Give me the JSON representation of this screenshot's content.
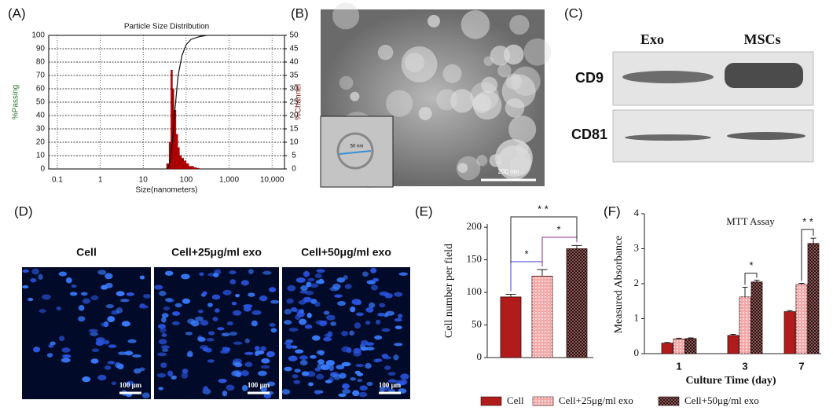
{
  "chart_data": [
    {
      "type": "histline",
      "panel": "(A)",
      "title": "Particle Size Distribution",
      "xlabel": "Size(nanometers)",
      "ylabel": "%Passing",
      "y2label": "%Channel",
      "xscale": "log",
      "xlim": [
        0.063,
        19500
      ],
      "xticks": [
        0.1,
        1,
        10,
        100,
        {
          "value": 1000,
          "label": "1,000"
        },
        {
          "value": 10000,
          "label": "10,000"
        }
      ],
      "ylim": [
        0,
        100
      ],
      "yticks": [
        0,
        10,
        20,
        30,
        40,
        50,
        60,
        70,
        80,
        90,
        100
      ],
      "y2lim": [
        0,
        50
      ],
      "y2ticks": [
        0,
        5,
        10,
        15,
        20,
        25,
        30,
        35,
        40,
        45,
        50
      ],
      "grid": true,
      "bins": [
        35,
        40,
        44,
        48,
        52,
        58,
        64,
        70,
        78,
        88,
        100,
        115,
        130,
        150,
        175,
        200
      ],
      "counts": [
        2,
        10,
        37,
        30,
        22,
        13,
        8,
        5,
        4,
        3,
        2,
        1,
        1,
        0.5,
        0.3
      ],
      "bar_color": "#c00000",
      "line": {
        "color": "#111111",
        "x": [
          35,
          40,
          48,
          55,
          65,
          80,
          100,
          130,
          200,
          300
        ],
        "y": [
          0,
          2,
          20,
          45,
          70,
          85,
          93,
          97,
          99,
          100
        ]
      }
    },
    {
      "type": "bar",
      "panel": "(E)",
      "ylabel": "Cell number per field",
      "categories": [
        null,
        null,
        null
      ],
      "values": [
        93,
        125,
        167
      ],
      "errors": [
        4,
        10,
        5
      ],
      "colors": [
        "#b01c1c",
        "#f4a8a8",
        "#8a5a5a"
      ],
      "hatch": [
        "none",
        "dots",
        "checker"
      ],
      "ylim": [
        0,
        205
      ],
      "yticks": [
        0,
        50,
        100,
        150,
        200
      ],
      "annotations": [
        "*",
        "*",
        "* *"
      ]
    },
    {
      "type": "groupedbar",
      "panel": "(F)",
      "title": "MTT Assay",
      "xlabel": "Culture Time (day)",
      "ylabel": "Measured Absorbance",
      "categories": [
        "1",
        "3",
        "7"
      ],
      "ylim": [
        0,
        4
      ],
      "yticks": [
        0,
        1,
        2,
        3,
        4
      ],
      "series": [
        {
          "name": "Cell",
          "color": "#b01c1c",
          "hatch": "none",
          "values": [
            0.3,
            0.52,
            1.2
          ],
          "errors": [
            0.02,
            0.03,
            0.03
          ]
        },
        {
          "name": "Cell+25μg/ml exo",
          "color": "#f4a8a8",
          "hatch": "dots",
          "values": [
            0.42,
            1.62,
            1.98
          ],
          "errors": [
            0.02,
            0.28,
            0.03
          ]
        },
        {
          "name": "Cell+50μg/ml exo",
          "color": "#8a5a5a",
          "hatch": "checker",
          "values": [
            0.43,
            2.05,
            3.15
          ],
          "errors": [
            0.02,
            0.05,
            0.15
          ]
        }
      ],
      "annotations": [
        "*",
        "* *"
      ]
    }
  ],
  "image_panels": {
    "B": {
      "panel": "(B)",
      "scale_bar": "200 nm",
      "inset_scale": "50 nm"
    },
    "C": {
      "panel": "(C)",
      "columns": [
        "Exo",
        "MSCs"
      ],
      "rows": [
        "CD9",
        "CD81"
      ]
    },
    "D": {
      "panel": "(D)",
      "images": [
        "Cell",
        "Cell+25μg/ml exo",
        "Cell+50μg/ml exo"
      ],
      "scale_bar": "100 μm"
    }
  }
}
